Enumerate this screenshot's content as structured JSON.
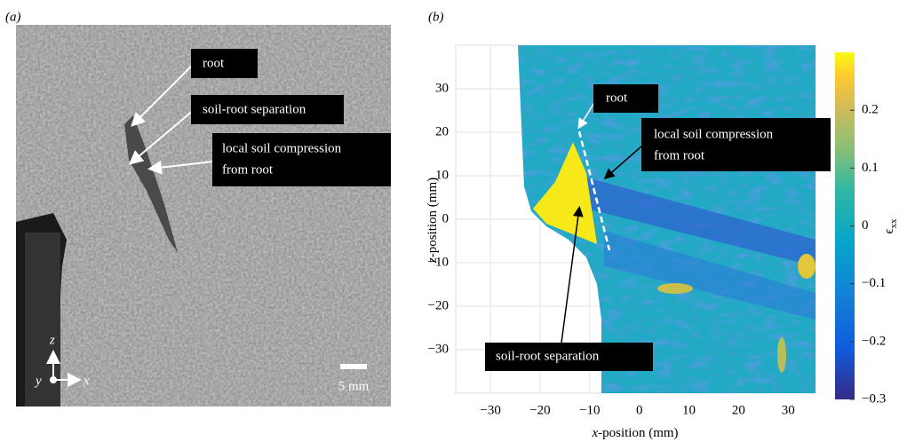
{
  "panels": [
    {
      "label": "(a)",
      "annotations": {
        "root": "root",
        "separation": "soil-root separation",
        "compression": [
          "local soil compression",
          "from root"
        ]
      },
      "axes": {
        "z": "z",
        "y": "y",
        "x": "x"
      },
      "scale_bar": "5 mm"
    },
    {
      "label": "(b)",
      "xlabel": {
        "var": "x",
        "rest": "-position (mm)"
      },
      "ylabel": {
        "var": "z",
        "rest": "-position (mm)"
      },
      "xlim": [
        -37,
        35.5
      ],
      "xticks": [
        {
          "value": -30,
          "label": "−30"
        },
        {
          "value": -20,
          "label": "−20"
        },
        {
          "value": -10,
          "label": "−10"
        },
        0,
        10,
        20,
        30
      ],
      "ylim": [
        -40,
        40
      ],
      "yticks": [
        {
          "value": -30,
          "label": "−30"
        },
        {
          "value": -20,
          "label": "−20"
        },
        {
          "value": -10,
          "label": "−10"
        },
        0,
        10,
        20,
        30
      ],
      "colorbar": {
        "symbol": "ϵ",
        "subscript": "xx",
        "lim": [
          -0.3,
          0.3
        ],
        "ticks": [
          {
            "value": -0.3,
            "label": "−0.3"
          },
          {
            "value": -0.2,
            "label": "−0.2"
          },
          {
            "value": -0.1,
            "label": "−0.1"
          },
          0,
          0.1,
          0.2
        ]
      },
      "annotations": {
        "root": "root",
        "compression": [
          "local soil compression",
          "from root"
        ],
        "separation": "soil-root separation"
      }
    }
  ]
}
